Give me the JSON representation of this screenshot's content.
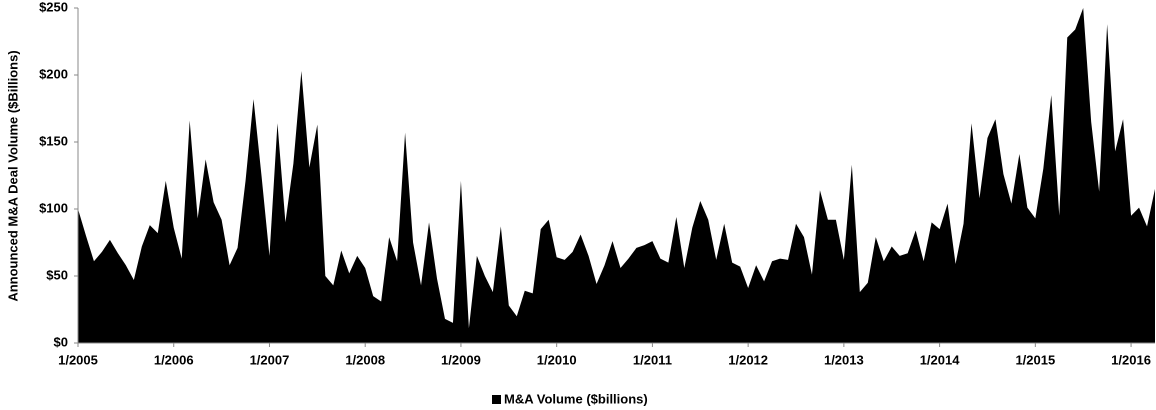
{
  "chart_data": {
    "type": "area",
    "y_label": "Announced M&A Deal Volume ($Billions)",
    "categories": [
      "1/2005",
      null,
      null,
      null,
      null,
      null,
      null,
      null,
      null,
      null,
      null,
      null,
      "1/2006",
      null,
      null,
      null,
      null,
      null,
      null,
      null,
      null,
      null,
      null,
      null,
      "1/2007",
      null,
      null,
      null,
      null,
      null,
      null,
      null,
      null,
      null,
      null,
      null,
      "1/2008",
      null,
      null,
      null,
      null,
      null,
      null,
      null,
      null,
      null,
      null,
      null,
      "1/2009",
      null,
      null,
      null,
      null,
      null,
      null,
      null,
      null,
      null,
      null,
      null,
      "1/2010",
      null,
      null,
      null,
      null,
      null,
      null,
      null,
      null,
      null,
      null,
      null,
      "1/2011",
      null,
      null,
      null,
      null,
      null,
      null,
      null,
      null,
      null,
      null,
      null,
      "1/2012",
      null,
      null,
      null,
      null,
      null,
      null,
      null,
      null,
      null,
      null,
      null,
      "1/2013",
      null,
      null,
      null,
      null,
      null,
      null,
      null,
      null,
      null,
      null,
      null,
      "1/2014",
      null,
      null,
      null,
      null,
      null,
      null,
      null,
      null,
      null,
      null,
      null,
      "1/2015",
      null,
      null,
      null,
      null,
      null,
      null,
      null,
      null,
      null,
      null,
      null,
      "1/2016",
      null,
      null,
      null
    ],
    "series": [
      {
        "name": "M&A Volume ($billions)",
        "color": "#000000",
        "values": [
          100,
          80,
          61,
          68,
          77,
          67,
          58,
          47,
          72,
          88,
          82,
          121,
          86,
          63,
          166,
          93,
          137,
          105,
          92,
          58,
          71,
          121,
          182,
          125,
          65,
          164,
          90,
          134,
          203,
          131,
          163,
          50,
          43,
          69,
          52,
          65,
          56,
          35,
          31,
          79,
          61,
          157,
          75,
          43,
          90,
          48,
          18,
          15,
          121,
          11,
          65,
          50,
          38,
          87,
          28,
          20,
          39,
          37,
          85,
          92,
          64,
          62,
          68,
          81,
          65,
          44,
          58,
          76,
          56,
          63,
          71,
          73,
          76,
          63,
          60,
          94,
          56,
          86,
          106,
          92,
          62,
          89,
          60,
          57,
          41,
          58,
          46,
          61,
          63,
          62,
          89,
          79,
          51,
          114,
          92,
          92,
          62,
          133,
          38,
          45,
          79,
          61,
          72,
          65,
          67,
          84,
          61,
          90,
          85,
          104,
          59,
          89,
          164,
          108,
          153,
          167,
          126,
          104,
          141,
          101,
          93,
          130,
          185,
          95,
          228,
          234,
          250,
          165,
          113,
          238,
          143,
          167,
          95,
          101,
          87,
          115
        ]
      }
    ],
    "ylim": [
      0,
      250
    ],
    "yticks": [
      {
        "value": 0,
        "label": "$0"
      },
      {
        "value": 50,
        "label": "$50"
      },
      {
        "value": 100,
        "label": "$100"
      },
      {
        "value": 150,
        "label": "$150"
      },
      {
        "value": 200,
        "label": "$200"
      },
      {
        "value": 250,
        "label": "$250"
      }
    ],
    "legend": "bottom"
  }
}
